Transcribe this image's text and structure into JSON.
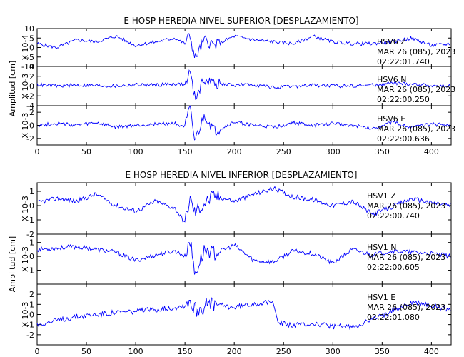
{
  "chart_data": [
    {
      "type": "line",
      "title": "E HOSP HEREDIA NIVEL SUPERIOR [DESPLAZAMIENTO]",
      "ylabel": "Amplitud [cm]",
      "xlim": [
        0,
        420
      ],
      "xticks": [
        0,
        50,
        100,
        150,
        200,
        250,
        300,
        350,
        400
      ],
      "line_color": "#0000ff",
      "traces": [
        {
          "station": "HSV6",
          "component": "Z",
          "date": "MAR 26 (085), 2023",
          "time": "02:22:01.740",
          "scale_label": "X 10-4",
          "ylim": [
            -10,
            10
          ],
          "yticks": [
            10,
            5,
            0,
            -5,
            -10
          ],
          "yticks_labels": [
            "10",
            "5",
            "0",
            "-5",
            "-10"
          ],
          "x": [
            0,
            20,
            40,
            60,
            80,
            100,
            120,
            140,
            150,
            155,
            160,
            170,
            180,
            200,
            220,
            240,
            260,
            280,
            300,
            320,
            340,
            360,
            380,
            400,
            420
          ],
          "y": [
            2,
            0,
            4,
            3,
            6,
            1,
            3,
            5,
            2,
            7,
            -6,
            4,
            1,
            6,
            4,
            3,
            2,
            6,
            3,
            2,
            2,
            3,
            5,
            1,
            2
          ]
        },
        {
          "station": "HSV6",
          "component": "N",
          "date": "MAR 26 (085), 2023",
          "time": "02:22:00.250",
          "scale_label": "X 10-3",
          "ylim": [
            -4,
            4
          ],
          "yticks": [
            4,
            2,
            0,
            -2,
            -4
          ],
          "yticks_labels": [
            "4",
            "2",
            "0",
            "-2",
            "-4"
          ],
          "x": [
            0,
            20,
            40,
            60,
            80,
            100,
            120,
            140,
            150,
            155,
            160,
            170,
            180,
            200,
            220,
            240,
            260,
            280,
            300,
            320,
            340,
            360,
            380,
            400,
            420
          ],
          "y": [
            0.3,
            0,
            0.2,
            0.1,
            0,
            0.3,
            0.2,
            0.5,
            0.2,
            3,
            -2.5,
            1.5,
            0.5,
            0.2,
            0.3,
            -0.3,
            -0.1,
            0.2,
            0,
            0.1,
            0.2,
            0.6,
            0.4,
            0.1,
            0
          ]
        },
        {
          "station": "HSV6",
          "component": "E",
          "date": "MAR 26 (085), 2023",
          "time": "02:22:00.636",
          "scale_label": "X 10-3",
          "ylim": [
            -3,
            3
          ],
          "yticks": [
            2,
            0,
            -2
          ],
          "yticks_labels": [
            "2",
            "0",
            "-2"
          ],
          "x": [
            0,
            20,
            40,
            60,
            80,
            100,
            120,
            140,
            150,
            155,
            160,
            170,
            180,
            200,
            220,
            240,
            260,
            280,
            300,
            320,
            340,
            360,
            380,
            400,
            420
          ],
          "y": [
            0,
            0.3,
            0,
            0.4,
            -0.3,
            0,
            0.2,
            0.3,
            -0.2,
            2.5,
            -2.5,
            1.5,
            -1,
            0.5,
            0,
            -0.3,
            0.4,
            0,
            0.3,
            0,
            -0.5,
            0.5,
            -0.3,
            0.2,
            0
          ]
        }
      ]
    },
    {
      "type": "line",
      "title": "E HOSP HEREDIA NIVEL INFERIOR [DESPLAZAMIENTO]",
      "ylabel": "Amplitud [cm]",
      "xlim": [
        0,
        420
      ],
      "xticks": [
        0,
        50,
        100,
        150,
        200,
        250,
        300,
        350,
        400
      ],
      "line_color": "#0000ff",
      "traces": [
        {
          "station": "HSV1",
          "component": "Z",
          "date": "MAR 26 (085), 2023",
          "time": "02:22:00.740",
          "scale_label": "X 10-3",
          "ylim": [
            -2,
            1.6
          ],
          "yticks": [
            1,
            0,
            -1,
            -2
          ],
          "yticks_labels": [
            "1",
            "0",
            "-1",
            "-2"
          ],
          "x": [
            0,
            20,
            40,
            60,
            80,
            100,
            120,
            140,
            150,
            155,
            160,
            170,
            180,
            200,
            220,
            240,
            260,
            280,
            300,
            320,
            340,
            360,
            380,
            400,
            420
          ],
          "y": [
            0.2,
            0.5,
            0.3,
            0.8,
            0,
            -0.4,
            0.3,
            -0.2,
            -1.2,
            0.5,
            -0.5,
            0.2,
            0.7,
            0.3,
            0.8,
            1.2,
            0.6,
            0.4,
            0,
            0.3,
            -0.6,
            -0.1,
            0.5,
            0.2,
            0
          ]
        },
        {
          "station": "HSV1",
          "component": "N",
          "date": "MAR 26 (085), 2023",
          "time": "02:22:00.605",
          "scale_label": "X 10-3",
          "ylim": [
            -2,
            1.6
          ],
          "yticks": [
            1,
            0,
            -1
          ],
          "yticks_labels": [
            "1",
            "0",
            "-1"
          ],
          "x": [
            0,
            20,
            40,
            60,
            80,
            100,
            120,
            140,
            150,
            155,
            160,
            170,
            180,
            200,
            220,
            240,
            260,
            280,
            300,
            320,
            340,
            360,
            380,
            400,
            420
          ],
          "y": [
            0.5,
            0.6,
            0.7,
            0.5,
            0.3,
            -0.3,
            0.1,
            0.4,
            0,
            1.3,
            -1.3,
            0.5,
            0.2,
            0.8,
            -0.3,
            -0.4,
            0.4,
            0.2,
            -0.5,
            0.5,
            0.1,
            0.4,
            0.3,
            0.2,
            0
          ]
        },
        {
          "station": "HSV1",
          "component": "E",
          "date": "MAR 26 (085), 2023",
          "time": "02:22:01.080",
          "scale_label": "X 10-3",
          "ylim": [
            -3,
            3
          ],
          "yticks": [
            2,
            1,
            0,
            -1,
            -2
          ],
          "yticks_labels": [
            "2",
            "1",
            "0",
            "-1",
            "-2"
          ],
          "x": [
            0,
            20,
            40,
            60,
            80,
            100,
            120,
            140,
            150,
            155,
            160,
            170,
            180,
            200,
            220,
            240,
            245,
            260,
            280,
            300,
            320,
            340,
            360,
            380,
            400,
            420
          ],
          "y": [
            -1,
            -0.6,
            -0.2,
            0,
            0.2,
            0.3,
            0.5,
            0.7,
            0.9,
            1.5,
            0.5,
            0.8,
            1,
            0.7,
            1.1,
            1.2,
            -0.8,
            -1.1,
            -0.9,
            -1.2,
            -1.2,
            -0.5,
            0.3,
            1.2,
            0.9,
            0.5
          ]
        }
      ]
    }
  ]
}
